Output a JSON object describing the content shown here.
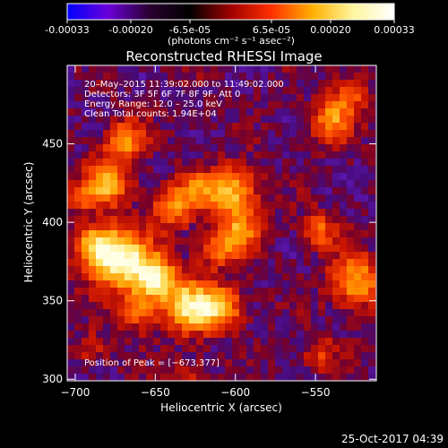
{
  "colorbar": {
    "tick_labels": [
      "-0.00033",
      "-0.00020",
      "-6.5e-05",
      "6.5e-05",
      "0.00020",
      "0.00033"
    ],
    "unit_label": "(photons cm⁻² s⁻¹ asec⁻²)",
    "colors": [
      "#0000ff",
      "#6a00d9",
      "#2a0030",
      "#000000",
      "#a00000",
      "#ff3000",
      "#ffb000",
      "#fff6a0",
      "#ffffff"
    ]
  },
  "chart_data": {
    "type": "heatmap",
    "title": "Reconstructed RHESSI Image",
    "xlabel": "Heliocentric X (arcsec)",
    "ylabel": "Heliocentric Y (arcsec)",
    "xlim": [
      -705,
      -512
    ],
    "ylim": [
      299,
      500
    ],
    "x_ticks": [
      {
        "value": -700,
        "label": "−700"
      },
      {
        "value": -650,
        "label": "−650"
      },
      {
        "value": -600,
        "label": "−600"
      },
      {
        "value": -550,
        "label": "−550"
      }
    ],
    "y_ticks": [
      {
        "value": 300,
        "label": "300"
      },
      {
        "value": 350,
        "label": "350"
      },
      {
        "value": 400,
        "label": "400"
      },
      {
        "value": 450,
        "label": "450"
      }
    ],
    "annotations": [
      "20–May–2015 11:39:02.000 to 11:49:02.000",
      "Detectors: 3F 5F 6F 7F 8F 9F, Att 0",
      "Energy Range: 12.0 – 25.0 keV",
      "Clean    Total counts: 1.94E+04"
    ],
    "peak_label": "Position of Peak = [−673,377]",
    "peak": {
      "x": -673,
      "y": 377
    },
    "sources": [
      {
        "x": -673,
        "y": 377,
        "amp": 1.0,
        "r": 13
      },
      {
        "x": -688,
        "y": 386,
        "amp": 0.55,
        "r": 8
      },
      {
        "x": -650,
        "y": 364,
        "amp": 0.8,
        "r": 10
      },
      {
        "x": -628,
        "y": 346,
        "amp": 0.85,
        "r": 11
      },
      {
        "x": -608,
        "y": 346,
        "amp": 0.6,
        "r": 9
      },
      {
        "x": -660,
        "y": 343,
        "amp": 0.45,
        "r": 8
      },
      {
        "x": -602,
        "y": 420,
        "amp": 0.7,
        "r": 11
      },
      {
        "x": -597,
        "y": 394,
        "amp": 0.55,
        "r": 9
      },
      {
        "x": -612,
        "y": 382,
        "amp": 0.45,
        "r": 8
      },
      {
        "x": -640,
        "y": 408,
        "amp": 0.5,
        "r": 9
      },
      {
        "x": -680,
        "y": 425,
        "amp": 0.65,
        "r": 10
      },
      {
        "x": -669,
        "y": 452,
        "amp": 0.55,
        "r": 9
      },
      {
        "x": -625,
        "y": 420,
        "amp": 0.45,
        "r": 8
      },
      {
        "x": -540,
        "y": 465,
        "amp": 0.55,
        "r": 9
      },
      {
        "x": -528,
        "y": 482,
        "amp": 0.4,
        "r": 8
      },
      {
        "x": -525,
        "y": 362,
        "amp": 0.65,
        "r": 11
      },
      {
        "x": -548,
        "y": 395,
        "amp": 0.45,
        "r": 8
      },
      {
        "x": -547,
        "y": 316,
        "amp": 0.35,
        "r": 7
      },
      {
        "x": -630,
        "y": 305,
        "amp": 0.25,
        "r": 7
      },
      {
        "x": -690,
        "y": 320,
        "amp": 0.25,
        "r": 7
      },
      {
        "x": -697,
        "y": 415,
        "amp": 0.3,
        "r": 6
      }
    ]
  },
  "footer": {
    "date": "25-Oct-2017 04:39"
  }
}
